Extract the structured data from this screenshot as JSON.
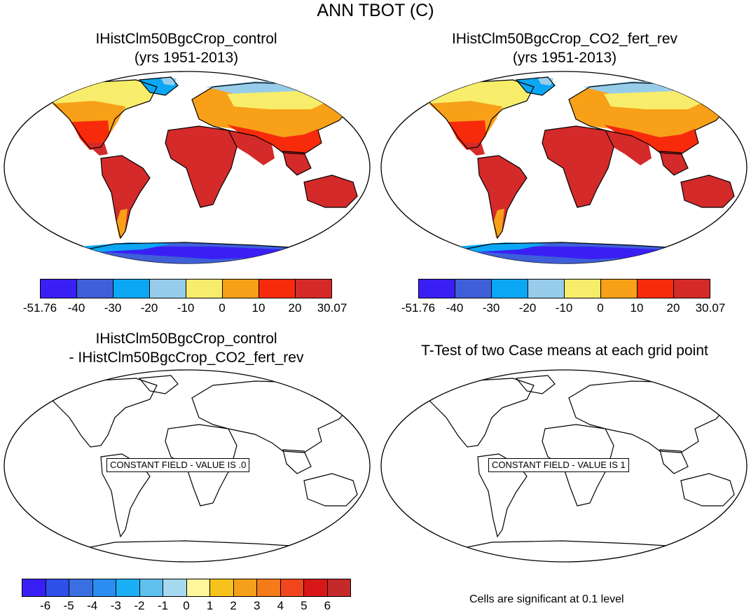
{
  "title": "ANN TBOT (C)",
  "panels": [
    {
      "name": "control",
      "title_line1": "IHistClm50BgcCrop_control",
      "title_line2": "(yrs 1951-2013)",
      "colorbar_labels": [
        "-51.76",
        "-40",
        "-30",
        "-20",
        "-10",
        "0",
        "10",
        "20",
        "30.07"
      ]
    },
    {
      "name": "co2-fert-rev",
      "title_line1": "IHistClm50BgcCrop_CO2_fert_rev",
      "title_line2": "(yrs 1951-2013)",
      "colorbar_labels": [
        "-51.76",
        "-40",
        "-30",
        "-20",
        "-10",
        "0",
        "10",
        "20",
        "30.07"
      ]
    },
    {
      "name": "difference",
      "title_line1": "IHistClm50BgcCrop_control",
      "title_line2": "- IHistClm50BgcCrop_CO2_fert_rev",
      "constant_field": "CONSTANT FIELD - VALUE IS .0"
    },
    {
      "name": "t-test",
      "title_line1": "T-Test of two Case means at each grid point",
      "constant_field": "CONSTANT FIELD - VALUE IS 1"
    }
  ],
  "colorbar_main": {
    "colors": [
      "#3a1ff5",
      "#3e5fd8",
      "#0ba7f5",
      "#97cdeb",
      "#f8ed6b",
      "#f7a018",
      "#f72a0c",
      "#d42a2a"
    ]
  },
  "colorbar_diff": {
    "labels": [
      "-6",
      "-5",
      "-4",
      "-3",
      "-2",
      "-1",
      "0",
      "1",
      "2",
      "3",
      "4",
      "5",
      "6"
    ],
    "colors": [
      "#3a1ff5",
      "#2f4fea",
      "#3a6fe0",
      "#2a8ef0",
      "#1aaff4",
      "#5ec0ec",
      "#a6d8f0",
      "#fff59a",
      "#f8c21c",
      "#f5a01a",
      "#f57a18",
      "#f0461e",
      "#d81818",
      "#c42a2a"
    ]
  },
  "note": "Cells are significant at 0.1 level"
}
